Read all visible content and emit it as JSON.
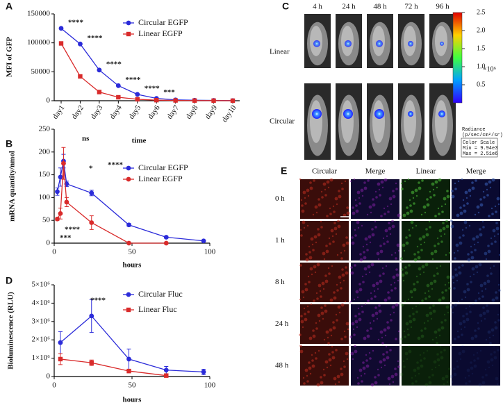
{
  "chart_data": [
    {
      "type": "line",
      "panel_label": "A",
      "ylabel": "MFI of GFP",
      "xlabel": "time",
      "categories": [
        "day1",
        "day2",
        "day3",
        "day4",
        "day5",
        "day6",
        "day7",
        "day8",
        "day9",
        "day10"
      ],
      "ylim": [
        0,
        150000
      ],
      "yticks": [
        0,
        50000,
        100000,
        150000
      ],
      "series": [
        {
          "name": "Circular EGFP",
          "color": "#2b2bd9",
          "marker": "circle",
          "values": [
            125000,
            98000,
            53000,
            26000,
            11000,
            4000,
            1500,
            800,
            500,
            300
          ]
        },
        {
          "name": "Linear EGFP",
          "color": "#d92b2b",
          "marker": "square",
          "values": [
            99000,
            42000,
            15000,
            6000,
            2500,
            1000,
            500,
            300,
            200,
            100
          ]
        }
      ],
      "annotations": [
        "****",
        "****",
        "****",
        "****",
        "****",
        "***"
      ]
    },
    {
      "type": "line",
      "panel_label": "B",
      "ylabel": "mRNA quantity/nmol",
      "xlabel": "hours",
      "x": [
        2,
        4,
        6,
        8,
        24,
        48,
        72,
        96
      ],
      "xlim": [
        0,
        100
      ],
      "xticks": [
        0,
        50,
        100
      ],
      "ylim": [
        0,
        250
      ],
      "yticks": [
        0,
        50,
        100,
        150,
        200,
        250
      ],
      "series": [
        {
          "name": "Circular EGFP",
          "color": "#2b2bd9",
          "marker": "circle",
          "values": [
            113,
            145,
            180,
            130,
            110,
            40,
            13,
            5
          ],
          "errors": [
            8,
            20,
            15,
            6,
            6,
            3,
            2,
            1
          ]
        },
        {
          "name": "Linear EGFP",
          "color": "#d92b2b",
          "marker": "circle",
          "values": [
            53,
            65,
            175,
            90,
            45,
            0,
            0,
            null
          ],
          "errors": [
            3,
            12,
            35,
            10,
            15,
            1,
            1,
            null
          ]
        }
      ],
      "annotations": [
        "ns",
        "*",
        "****",
        "****",
        "***"
      ]
    },
    {
      "type": "line",
      "panel_label": "D",
      "ylabel": "Bioluminescence (RLU)",
      "xlabel": "hours",
      "x": [
        4,
        24,
        48,
        72,
        96
      ],
      "xlim": [
        0,
        100
      ],
      "xticks": [
        0,
        50,
        100
      ],
      "ylim": [
        0,
        5000000
      ],
      "yticks": [
        0,
        {
          "value": 1000000,
          "label": "1×10⁶"
        },
        {
          "value": 2000000,
          "label": "2×10⁶"
        },
        {
          "value": 3000000,
          "label": "3×10⁶"
        },
        {
          "value": 4000000,
          "label": "4×10⁶"
        },
        {
          "value": 5000000,
          "label": "5×10⁶"
        }
      ],
      "series": [
        {
          "name": "Circular Fluc",
          "color": "#2b2bd9",
          "marker": "circle",
          "values": [
            1850000,
            3300000,
            950000,
            350000,
            250000
          ],
          "errors": [
            600000,
            900000,
            550000,
            200000,
            150000
          ]
        },
        {
          "name": "Linear Fluc",
          "color": "#d92b2b",
          "marker": "square",
          "values": [
            950000,
            750000,
            300000,
            50000,
            null
          ],
          "errors": [
            300000,
            150000,
            100000,
            30000,
            null
          ]
        }
      ],
      "annotations": [
        "****"
      ]
    }
  ],
  "imaging": {
    "panel_label": "C",
    "times": [
      "4 h",
      "24 h",
      "48 h",
      "72 h",
      "96 h"
    ],
    "rows": [
      "Linear",
      "Circular"
    ],
    "colorbar_ticks": [
      "2.5",
      "2.0",
      "1.5",
      "1.0",
      "0.5"
    ],
    "colorbar_unit": "×10⁶",
    "radiance_label": "Radiance",
    "radiance_unit": "(p/sec/cm²/sr)",
    "scale_title": "Color Scale",
    "scale_min": "Min = 9.94e3",
    "scale_max": "Max = 2.51e6"
  },
  "microscopy": {
    "panel_label": "E",
    "columns": [
      "Circular",
      "Merge",
      "Linear",
      "Merge"
    ],
    "rows": [
      "0 h",
      "1 h",
      "8 h",
      "24 h",
      "48 h"
    ]
  }
}
